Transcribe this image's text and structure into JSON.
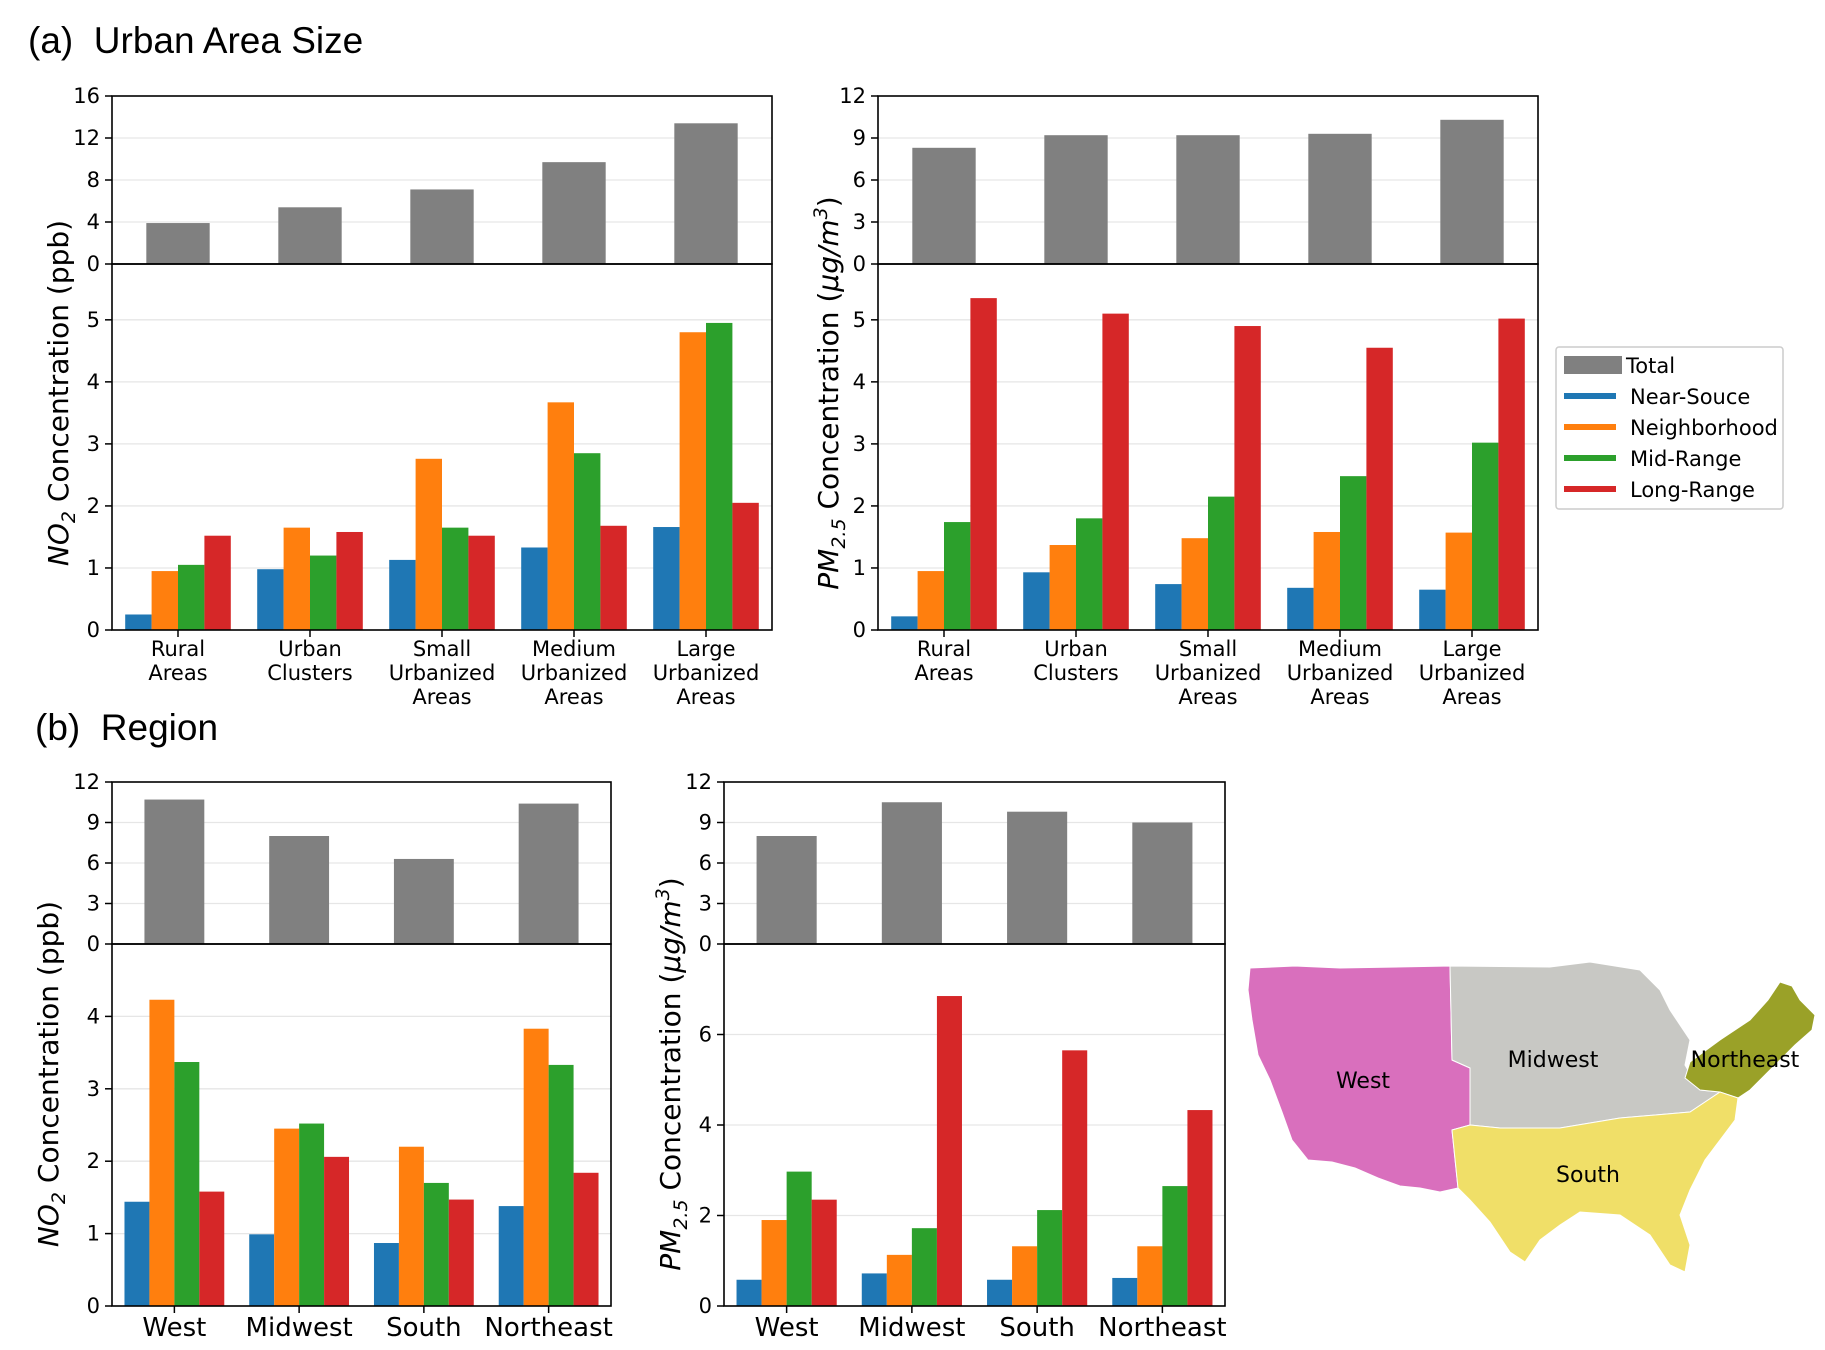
{
  "sections": {
    "a": "(a)  Urban Area Size",
    "b": "(b)  Region"
  },
  "colors": {
    "Total": "#808080",
    "Near-Souce": "#1f77b4",
    "Neighborhood": "#ff7f0e",
    "Mid-Range": "#2ca02c",
    "Long-Range": "#d62728"
  },
  "legend": {
    "placement": "right of panel (a)",
    "items": [
      "Total",
      "Near-Souce",
      "Neighborhood",
      "Mid-Range",
      "Long-Range"
    ]
  },
  "map": {
    "labels": [
      "West",
      "Midwest",
      "South",
      "Northeast"
    ],
    "colors": {
      "West": "#d96fbd",
      "Midwest": "#c8c8c4",
      "South": "#f0df68",
      "Northeast": "#9aa128"
    }
  },
  "chart_data": [
    {
      "id": "a-no2",
      "type": "bar",
      "ylabel": "NO2 Concentration (ppb)",
      "categories": [
        [
          "Rural",
          "Areas"
        ],
        [
          "Urban",
          "Clusters"
        ],
        [
          "Small",
          "Urbanized",
          "Areas"
        ],
        [
          "Medium",
          "Urbanized",
          "Areas"
        ],
        [
          "Large",
          "Urbanized",
          "Areas"
        ]
      ],
      "top": {
        "series": [
          {
            "name": "Total",
            "values": [
              3.9,
              5.4,
              7.1,
              9.7,
              13.4
            ]
          }
        ],
        "ylim": [
          0,
          16
        ],
        "yticks": [
          0,
          4,
          8,
          12,
          16
        ]
      },
      "bottom": {
        "series": [
          {
            "name": "Near-Souce",
            "values": [
              0.25,
              0.98,
              1.13,
              1.33,
              1.66
            ]
          },
          {
            "name": "Neighborhood",
            "values": [
              0.95,
              1.65,
              2.76,
              3.67,
              4.8
            ]
          },
          {
            "name": "Mid-Range",
            "values": [
              1.05,
              1.2,
              1.65,
              2.85,
              4.95
            ]
          },
          {
            "name": "Long-Range",
            "values": [
              1.52,
              1.58,
              1.52,
              1.68,
              2.05
            ]
          }
        ],
        "ylim": [
          0,
          5.9
        ],
        "yticks": [
          0,
          1,
          2,
          3,
          4,
          5
        ]
      },
      "grid": true
    },
    {
      "id": "a-pm25",
      "type": "bar",
      "ylabel": "PM2.5 Concentration (μg/m3)",
      "categories": [
        [
          "Rural",
          "Areas"
        ],
        [
          "Urban",
          "Clusters"
        ],
        [
          "Small",
          "Urbanized",
          "Areas"
        ],
        [
          "Medium",
          "Urbanized",
          "Areas"
        ],
        [
          "Large",
          "Urbanized",
          "Areas"
        ]
      ],
      "top": {
        "series": [
          {
            "name": "Total",
            "values": [
              8.3,
              9.2,
              9.2,
              9.3,
              10.3
            ]
          }
        ],
        "ylim": [
          0,
          12
        ],
        "yticks": [
          0,
          3,
          6,
          9,
          12
        ]
      },
      "bottom": {
        "series": [
          {
            "name": "Near-Souce",
            "values": [
              0.22,
              0.93,
              0.74,
              0.68,
              0.65
            ]
          },
          {
            "name": "Neighborhood",
            "values": [
              0.95,
              1.37,
              1.48,
              1.58,
              1.57
            ]
          },
          {
            "name": "Mid-Range",
            "values": [
              1.74,
              1.8,
              2.15,
              2.48,
              3.02
            ]
          },
          {
            "name": "Long-Range",
            "values": [
              5.35,
              5.1,
              4.9,
              4.55,
              5.02
            ]
          }
        ],
        "ylim": [
          0,
          5.9
        ],
        "yticks": [
          0,
          1,
          2,
          3,
          4,
          5
        ]
      },
      "grid": true
    },
    {
      "id": "b-no2",
      "type": "bar",
      "ylabel": "NO2 Concentration (ppb)",
      "categories": [
        [
          "West"
        ],
        [
          "Midwest"
        ],
        [
          "South"
        ],
        [
          "Northeast"
        ]
      ],
      "top": {
        "series": [
          {
            "name": "Total",
            "values": [
              10.7,
              8.0,
              6.3,
              10.4
            ]
          }
        ],
        "ylim": [
          0,
          12
        ],
        "yticks": [
          0,
          3,
          6,
          9,
          12
        ]
      },
      "bottom": {
        "series": [
          {
            "name": "Near-Souce",
            "values": [
              1.44,
              0.99,
              0.87,
              1.38
            ]
          },
          {
            "name": "Neighborhood",
            "values": [
              4.23,
              2.45,
              2.2,
              3.83
            ]
          },
          {
            "name": "Mid-Range",
            "values": [
              3.37,
              2.52,
              1.7,
              3.33
            ]
          },
          {
            "name": "Long-Range",
            "values": [
              1.58,
              2.06,
              1.47,
              1.84
            ]
          }
        ],
        "ylim": [
          0,
          5.0
        ],
        "yticks": [
          0,
          1,
          2,
          3,
          4
        ]
      },
      "grid": true
    },
    {
      "id": "b-pm25",
      "type": "bar",
      "ylabel": "PM2.5 Concentration (μg/m3)",
      "categories": [
        [
          "West"
        ],
        [
          "Midwest"
        ],
        [
          "South"
        ],
        [
          "Northeast"
        ]
      ],
      "top": {
        "series": [
          {
            "name": "Total",
            "values": [
              8.0,
              10.5,
              9.8,
              9.0
            ]
          }
        ],
        "ylim": [
          0,
          12
        ],
        "yticks": [
          0,
          3,
          6,
          9,
          12
        ]
      },
      "bottom": {
        "series": [
          {
            "name": "Near-Souce",
            "values": [
              0.58,
              0.72,
              0.58,
              0.62
            ]
          },
          {
            "name": "Neighborhood",
            "values": [
              1.9,
              1.13,
              1.32,
              1.32
            ]
          },
          {
            "name": "Mid-Range",
            "values": [
              2.97,
              1.72,
              2.12,
              2.65
            ]
          },
          {
            "name": "Long-Range",
            "values": [
              2.35,
              6.85,
              5.65,
              4.33
            ]
          }
        ],
        "ylim": [
          0,
          8.0
        ],
        "yticks": [
          0,
          2,
          4,
          6
        ]
      },
      "grid": true
    }
  ]
}
